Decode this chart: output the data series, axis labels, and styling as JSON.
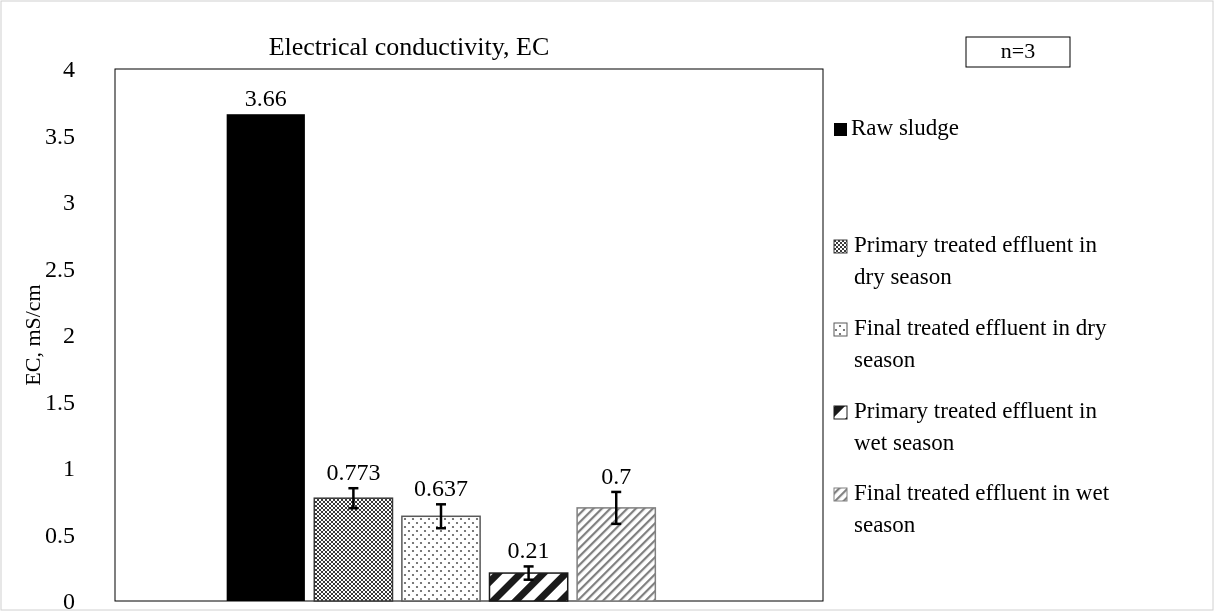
{
  "chart_data": {
    "type": "bar",
    "title": "Electrical conductivity, EC",
    "ylabel": "EC, mS/cm",
    "categories": [
      null
    ],
    "series": [
      {
        "name": "Raw sludge",
        "color": "#000000",
        "values": [
          3.66
        ]
      },
      {
        "name": "Primary treated effluent in dry season",
        "color": "#3a3a3a",
        "values": [
          0.773
        ],
        "errors": [
          0.075
        ]
      },
      {
        "name": "Final treated effluent in dry season",
        "color": "#595959",
        "values": [
          0.637
        ],
        "errors": [
          0.09
        ]
      },
      {
        "name": "Primary treated effluent in wet season",
        "color": "#1a1a1a",
        "values": [
          0.21
        ],
        "errors": [
          0.05
        ]
      },
      {
        "name": "Final treated effluent in wet season",
        "color": "#808080",
        "values": [
          0.7
        ],
        "errors": [
          0.12
        ]
      }
    ],
    "ylim": [
      0,
      4
    ],
    "yticks": [
      0,
      0.5,
      1,
      1.5,
      2,
      2.5,
      3,
      3.5,
      4
    ],
    "grid": false,
    "legend": "right",
    "data_labels": true,
    "annotations": [
      "n=3"
    ]
  }
}
